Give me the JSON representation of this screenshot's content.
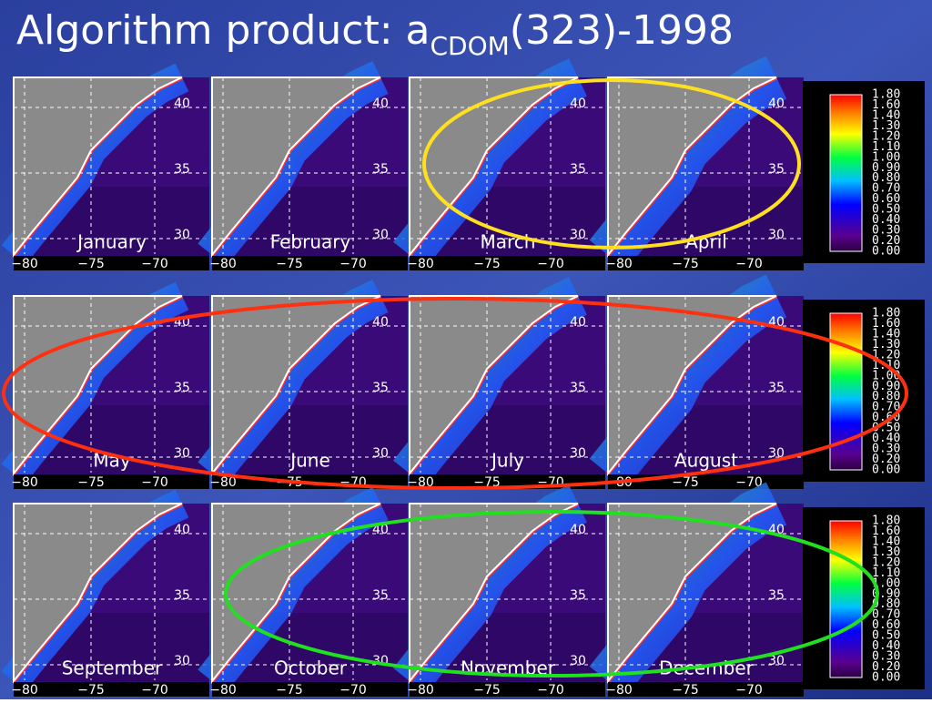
{
  "header": {
    "title": "Algorithm product: a",
    "subscript": "CDOM",
    "suffix": "(323)-1998"
  },
  "panels": [
    {
      "label": "January"
    },
    {
      "label": "February"
    },
    {
      "label": "March"
    },
    {
      "label": "April"
    },
    {
      "label": "May"
    },
    {
      "label": "June"
    },
    {
      "label": "July"
    },
    {
      "label": "August"
    },
    {
      "label": "September"
    },
    {
      "label": "October"
    },
    {
      "label": "November"
    },
    {
      "label": "December"
    }
  ],
  "latitude_labels": [
    "40",
    "35",
    "30"
  ],
  "longitude_labels": [
    "−80",
    "−75",
    "−70"
  ],
  "colorbar": {
    "labels": [
      "1.80",
      "1.60",
      "1.40",
      "1.30",
      "1.20",
      "1.10",
      "1.00",
      "0.90",
      "0.80",
      "0.70",
      "0.60",
      "0.50",
      "0.40",
      "0.30",
      "0.20",
      "0.00"
    ]
  }
}
